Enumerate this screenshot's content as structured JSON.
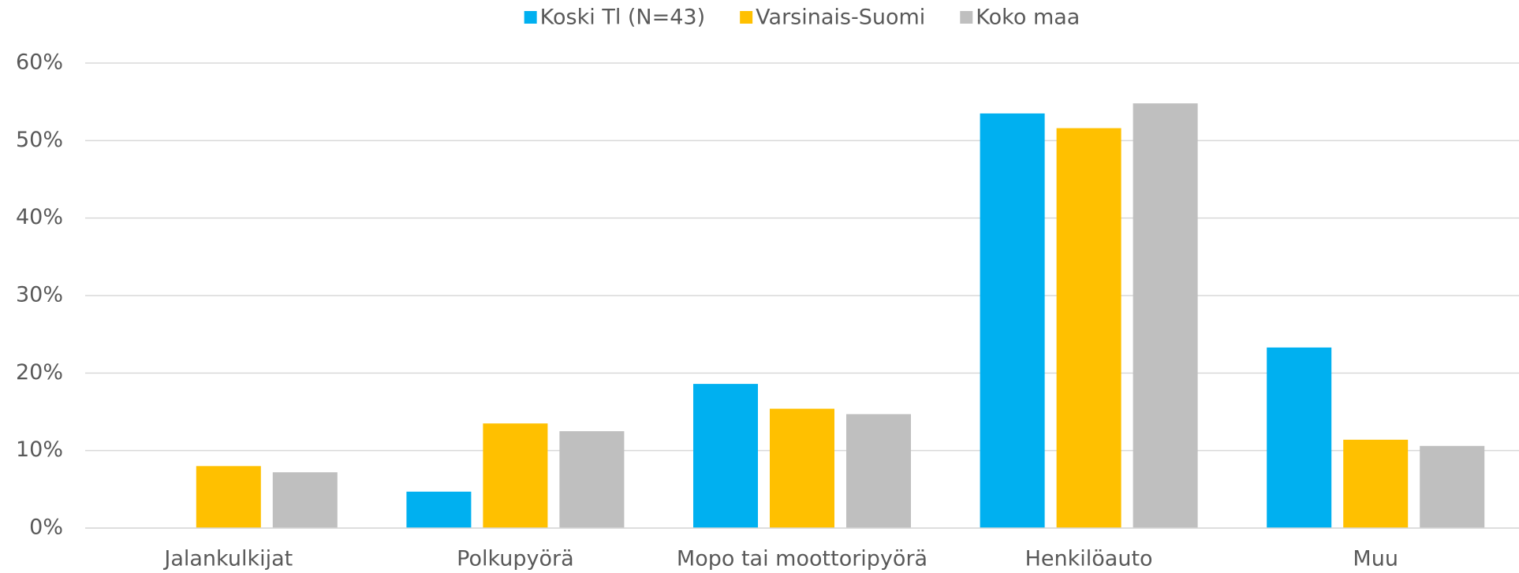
{
  "chart_data": {
    "type": "bar",
    "categories": [
      "Jalankulkijat",
      "Polkupyörä",
      "Mopo tai moottoripyörä",
      "Henkilöauto",
      "Muu"
    ],
    "series": [
      {
        "name": "Koski Tl (N=43)",
        "color": "#00b0f0",
        "values": [
          0,
          4.7,
          18.6,
          53.5,
          23.3
        ]
      },
      {
        "name": "Varsinais-Suomi",
        "color": "#ffc000",
        "values": [
          8.0,
          13.5,
          15.4,
          51.6,
          11.4
        ]
      },
      {
        "name": "Koko maa",
        "color": "#bfbfbf",
        "values": [
          7.2,
          12.5,
          14.7,
          54.8,
          10.6
        ]
      }
    ],
    "ylim": [
      0,
      60
    ],
    "yticks": [
      {
        "value": 0,
        "label": "0%"
      },
      {
        "value": 10,
        "label": "10%"
      },
      {
        "value": 20,
        "label": "20%"
      },
      {
        "value": 30,
        "label": "30%"
      },
      {
        "value": 40,
        "label": "40%"
      },
      {
        "value": 50,
        "label": "50%"
      },
      {
        "value": 60,
        "label": "60%"
      }
    ],
    "grid": true,
    "legend": "top"
  }
}
